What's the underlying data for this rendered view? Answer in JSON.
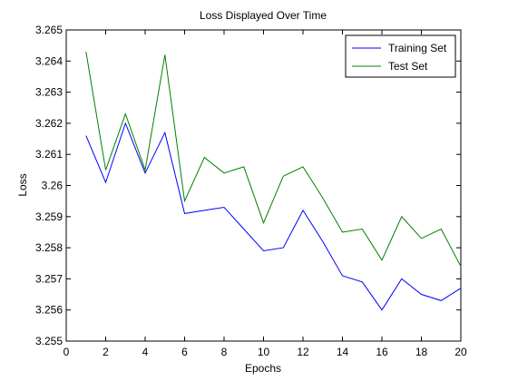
{
  "chart_data": {
    "type": "line",
    "title": "Loss Displayed Over Time",
    "xlabel": "Epochs",
    "ylabel": "Loss",
    "xlim": [
      0,
      20
    ],
    "ylim": [
      3.255,
      3.265
    ],
    "xticks": [
      0,
      2,
      4,
      6,
      8,
      10,
      12,
      14,
      16,
      18,
      20
    ],
    "xtick_labels": [
      "0",
      "2",
      "4",
      "6",
      "8",
      "10",
      "12",
      "14",
      "16",
      "18",
      "20"
    ],
    "yticks": [
      3.255,
      3.256,
      3.257,
      3.258,
      3.259,
      3.26,
      3.261,
      3.262,
      3.263,
      3.264,
      3.265
    ],
    "ytick_labels": [
      "3.255",
      "3.256",
      "3.257",
      "3.258",
      "3.259",
      "3.26",
      "3.261",
      "3.262",
      "3.263",
      "3.264",
      "3.265"
    ],
    "grid": false,
    "legend_position": "top-right",
    "x": [
      1,
      2,
      3,
      4,
      5,
      6,
      7,
      8,
      9,
      10,
      11,
      12,
      13,
      14,
      15,
      16,
      17,
      18,
      19,
      20
    ],
    "series": [
      {
        "name": "Training Set",
        "color": "#0000ff",
        "values": [
          3.2616,
          3.2601,
          3.262,
          3.2604,
          3.2617,
          3.2591,
          3.2592,
          3.2593,
          3.2586,
          3.2579,
          3.258,
          3.2592,
          3.2582,
          3.2571,
          3.2569,
          3.256,
          3.257,
          3.2565,
          3.2563,
          3.2567
        ]
      },
      {
        "name": "Test Set",
        "color": "#008000",
        "values": [
          3.2643,
          3.2605,
          3.2623,
          3.2605,
          3.2642,
          3.2595,
          3.2609,
          3.2604,
          3.2606,
          3.2588,
          3.2603,
          3.2606,
          3.2596,
          3.2585,
          3.2586,
          3.2576,
          3.259,
          3.2583,
          3.2586,
          3.2574
        ]
      }
    ]
  }
}
